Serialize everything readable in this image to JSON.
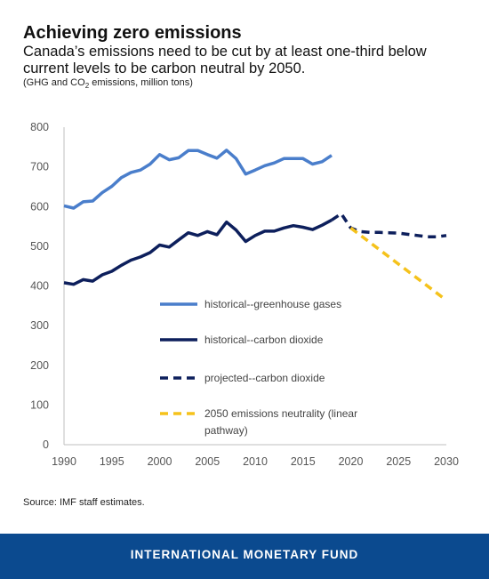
{
  "title": "Achieving zero emissions",
  "subtitle": "Canada’s emissions need to be cut by at least one-third below current levels to be carbon neutral by 2050.",
  "units": {
    "prefix": "(GHG and CO",
    "sub": "2",
    "suffix": " emissions, million tons)"
  },
  "source": "Source: IMF staff estimates.",
  "footer": "INTERNATIONAL MONETARY FUND",
  "colors": {
    "ghg": "#4a7ecb",
    "co2": "#0d1f5c",
    "projected": "#0d1f5c",
    "neutral": "#f5c21b",
    "axis": "#bfbfbf",
    "footer_bg": "#0b4a8f"
  },
  "chart_data": {
    "type": "line",
    "xlim": [
      1990,
      2030
    ],
    "ylim": [
      0,
      800
    ],
    "xticks": [
      1990,
      1995,
      2000,
      2005,
      2010,
      2015,
      2020,
      2025,
      2030
    ],
    "yticks": [
      0,
      100,
      200,
      300,
      400,
      500,
      600,
      700,
      800
    ],
    "grid": false,
    "legend_position": "inside-bottom-left",
    "series": [
      {
        "key": "ghg",
        "name": "historical--greenhouse gases",
        "style": "solid",
        "x": [
          1990,
          1991,
          1992,
          1993,
          1994,
          1995,
          1996,
          1997,
          1998,
          1999,
          2000,
          2001,
          2002,
          2003,
          2004,
          2005,
          2006,
          2007,
          2008,
          2009,
          2010,
          2011,
          2012,
          2013,
          2014,
          2015,
          2016,
          2017,
          2018
        ],
        "y": [
          602,
          596,
          612,
          614,
          635,
          651,
          673,
          686,
          692,
          707,
          731,
          718,
          723,
          741,
          741,
          731,
          722,
          742,
          721,
          682,
          692,
          703,
          710,
          721,
          721,
          721,
          707,
          713,
          729
        ]
      },
      {
        "key": "co2",
        "name": "historical--carbon dioxide",
        "style": "solid",
        "x": [
          1990,
          1991,
          1992,
          1993,
          1994,
          1995,
          1996,
          1997,
          1998,
          1999,
          2000,
          2001,
          2002,
          2003,
          2004,
          2005,
          2006,
          2007,
          2008,
          2009,
          2010,
          2011,
          2012,
          2013,
          2014,
          2015,
          2016,
          2017,
          2018
        ],
        "y": [
          408,
          404,
          416,
          412,
          428,
          437,
          452,
          465,
          473,
          484,
          503,
          498,
          516,
          534,
          527,
          537,
          529,
          561,
          541,
          512,
          527,
          538,
          538,
          546,
          552,
          548,
          542,
          553,
          566
        ]
      },
      {
        "key": "projected",
        "name": "projected--carbon dioxide",
        "style": "dashed",
        "x": [
          2018,
          2019,
          2020,
          2021,
          2022,
          2023,
          2024,
          2025,
          2026,
          2027,
          2028,
          2029,
          2030
        ],
        "y": [
          566,
          582,
          546,
          537,
          535,
          535,
          534,
          533,
          530,
          527,
          524,
          524,
          527
        ]
      },
      {
        "key": "neutral",
        "name": "2050 emissions neutrality (linear pathway)",
        "legend_lines": [
          "2050 emissions neutrality (linear",
          "pathway)"
        ],
        "style": "dashed",
        "x": [
          2020,
          2030
        ],
        "y": [
          546,
          364
        ]
      }
    ]
  }
}
